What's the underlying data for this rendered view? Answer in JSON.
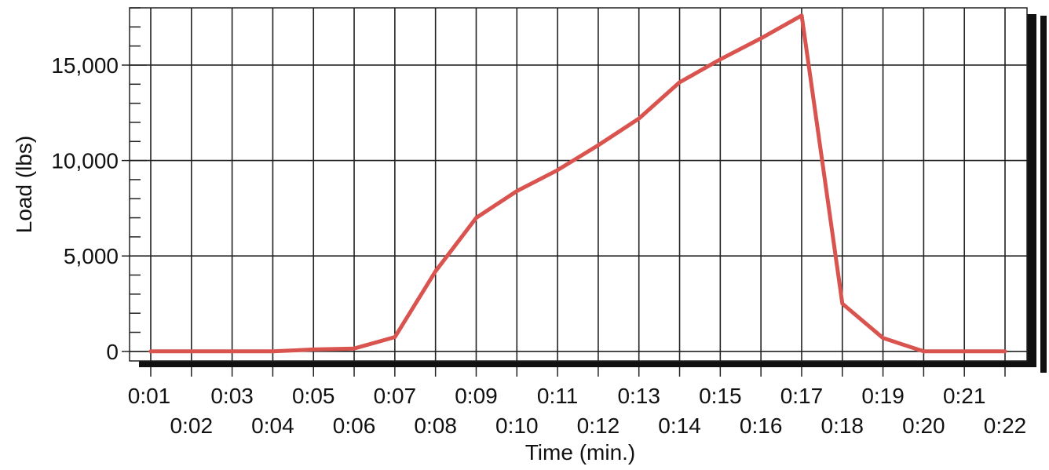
{
  "chart_data": {
    "type": "line",
    "title": "",
    "xlabel": "Time (min.)",
    "ylabel": "Load (lbs)",
    "x": [
      "0:01",
      "0:02",
      "0:03",
      "0:04",
      "0:05",
      "0:06",
      "0:07",
      "0:08",
      "0:09",
      "0:10",
      "0:11",
      "0:12",
      "0:13",
      "0:14",
      "0:15",
      "0:16",
      "0:17",
      "0:18",
      "0:19",
      "0:20",
      "0:21",
      "0:22"
    ],
    "series": [
      {
        "values": [
          0,
          0,
          0,
          0,
          100,
          150,
          750,
          4200,
          7000,
          8400,
          9500,
          10800,
          12200,
          14100,
          15300,
          16400,
          17600,
          2500,
          700,
          0,
          0,
          0
        ]
      }
    ],
    "ylim": [
      -500,
      18000
    ],
    "yticks": [
      0,
      5000,
      10000,
      15000
    ],
    "ytick_labels": [
      "0",
      "5,000",
      "10,000",
      "15,000"
    ],
    "grid": true,
    "colors": {
      "line": "#d9534f",
      "grid": "#222222",
      "shadow": "#111111"
    }
  }
}
